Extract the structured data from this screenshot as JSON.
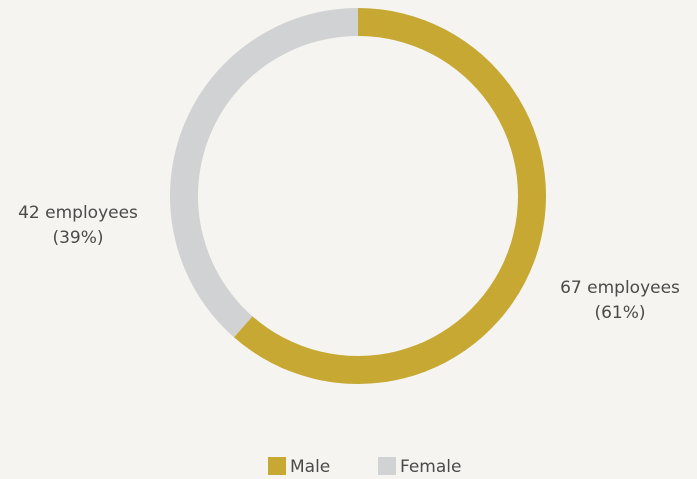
{
  "chart_data": {
    "type": "donut",
    "categories": [
      "Male",
      "Female"
    ],
    "values": [
      67,
      42
    ],
    "value_labels": [
      "67 employees",
      "42 employees"
    ],
    "share_labels": [
      "(61%)",
      "(39%)"
    ],
    "colors": [
      "#c6a832",
      "#d1d2d3"
    ],
    "legend": "bottom"
  }
}
